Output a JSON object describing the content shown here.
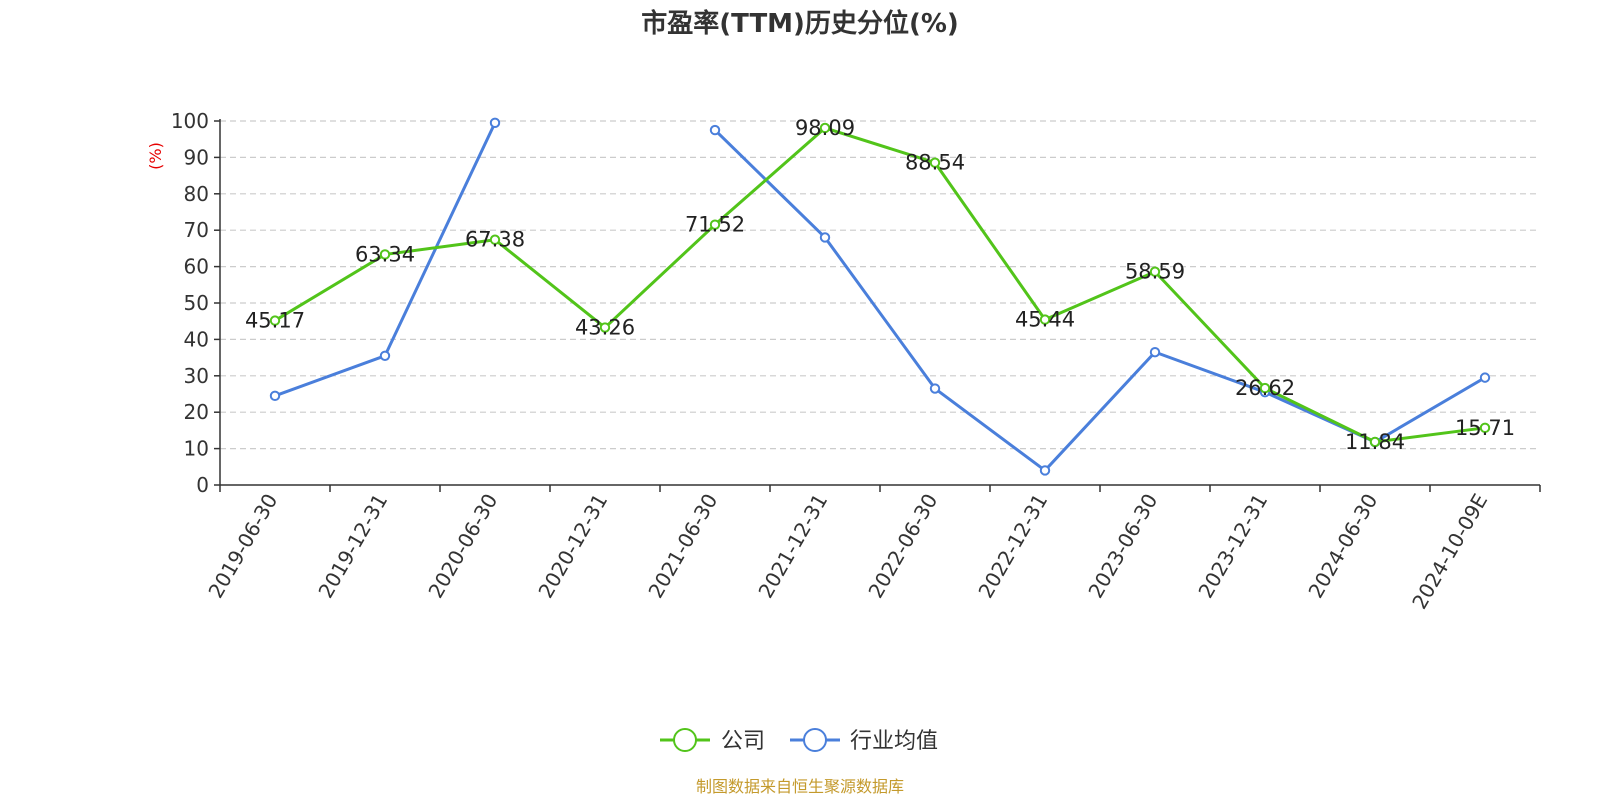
{
  "chart_data": {
    "type": "line",
    "title": "市盈率(TTM)历史分位(%)",
    "ylabel": "(%)",
    "ylim": [
      0,
      100
    ],
    "yticks": [
      0,
      10,
      20,
      30,
      40,
      50,
      60,
      70,
      80,
      90,
      100
    ],
    "grid": true,
    "legend_position": "bottom-center",
    "categories": [
      "2019-06-30",
      "2019-12-31",
      "2020-06-30",
      "2020-12-31",
      "2021-06-30",
      "2021-12-31",
      "2022-06-30",
      "2022-12-31",
      "2023-06-30",
      "2023-12-31",
      "2024-06-30",
      "2024-10-09E"
    ],
    "series": [
      {
        "name": "公司",
        "color": "#52c41a",
        "values": [
          45.17,
          63.34,
          67.38,
          43.26,
          71.52,
          98.09,
          88.54,
          45.44,
          58.59,
          26.62,
          11.84,
          15.71
        ],
        "labels": [
          "45.17",
          "63.34",
          "67.38",
          "43.26",
          "71.52",
          "98.09",
          "88.54",
          "45.44",
          "58.59",
          "26.62",
          "11.84",
          "15.71"
        ]
      },
      {
        "name": "行业均值",
        "color": "#4a7fdb",
        "values": [
          24.5,
          35.5,
          99.5,
          null,
          97.5,
          68,
          26.5,
          4,
          36.5,
          25.5,
          11.8,
          29.5
        ]
      }
    ],
    "source": "制图数据来自恒生聚源数据库"
  },
  "colors": {
    "axis": "#333333",
    "grid": "#cccccc",
    "unit": "#e60000",
    "source": "#c49a2c"
  }
}
